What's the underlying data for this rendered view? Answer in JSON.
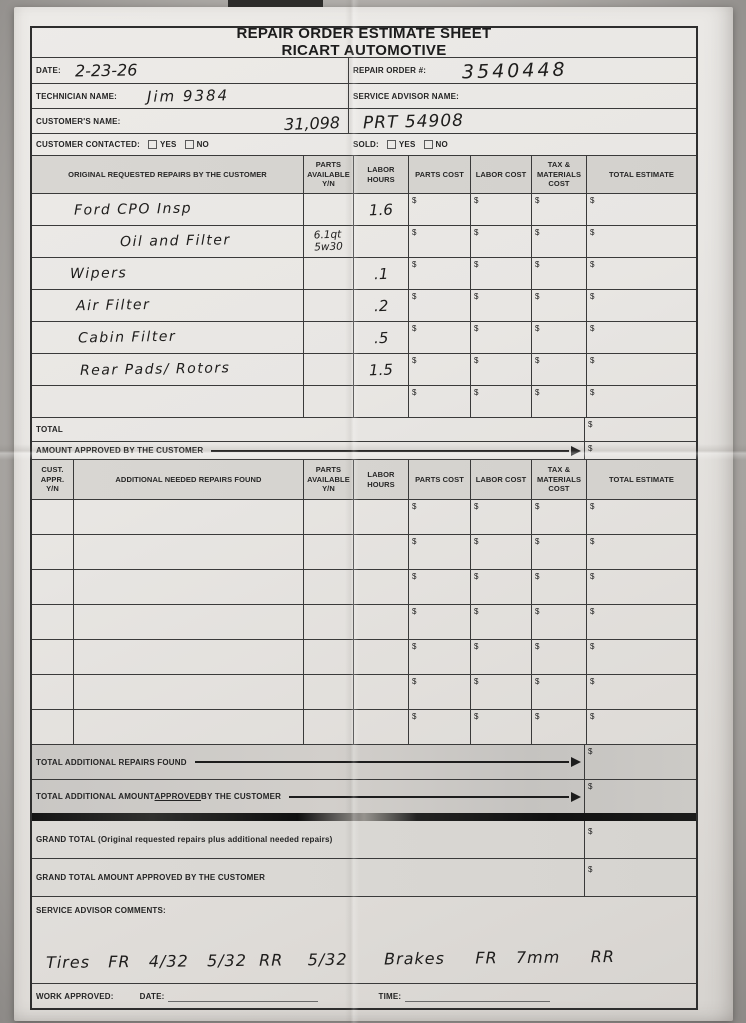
{
  "currency_symbol": "$",
  "header": {
    "title_line1": "REPAIR ORDER ESTIMATE SHEET",
    "title_line2": "RICART AUTOMOTIVE",
    "date_label": "DATE:",
    "date_value": "2-23-26",
    "repair_order_label": "REPAIR ORDER #:",
    "repair_order_value": "3540448",
    "technician_label": "TECHNICIAN NAME:",
    "technician_value": "Jim 9384",
    "service_advisor_label": "SERVICE ADVISOR NAME:",
    "customer_label": "CUSTOMER'S NAME:",
    "customer_value": "31,098",
    "customer_value_right": "PRT 54908",
    "customer_contacted_label": "CUSTOMER CONTACTED:",
    "sold_label": "SOLD:",
    "yes_label": "YES",
    "no_label": "NO"
  },
  "original_table": {
    "headers": [
      "ORIGINAL REQUESTED REPAIRS BY THE CUSTOMER",
      "PARTS\nAVAILABLE\nY/N",
      "LABOR\nHOURS",
      "PARTS COST",
      "LABOR COST",
      "TAX &\nMATERIALS\nCOST",
      "TOTAL ESTIMATE"
    ],
    "rows": [
      {
        "description": "Ford CPO Insp",
        "parts_available": "",
        "labor_hours": "1.6"
      },
      {
        "description": "Oil and Filter",
        "parts_available": "6.1qt\n5w30",
        "labor_hours": ""
      },
      {
        "description": "Wipers",
        "parts_available": "",
        "labor_hours": ".1"
      },
      {
        "description": "Air Filter",
        "parts_available": "",
        "labor_hours": ".2"
      },
      {
        "description": "Cabin Filter",
        "parts_available": "",
        "labor_hours": ".5"
      },
      {
        "description": "Rear Pads/ Rotors",
        "parts_available": "",
        "labor_hours": "1.5"
      },
      {
        "description": "",
        "parts_available": "",
        "labor_hours": ""
      }
    ],
    "total_label": "TOTAL",
    "amount_approved_label": "AMOUNT APPROVED BY THE CUSTOMER"
  },
  "additional_table": {
    "headers": [
      "CUST.\nAPPR.\nY/N",
      "ADDITIONAL NEEDED REPAIRS FOUND",
      "PARTS\nAVAILABLE\nY/N",
      "LABOR\nHOURS",
      "PARTS COST",
      "LABOR COST",
      "TAX &\nMATERIALS\nCOST",
      "TOTAL ESTIMATE"
    ],
    "empty_row_count": 7,
    "total_additional_label": "TOTAL ADDITIONAL REPAIRS FOUND",
    "total_additional_approved_prefix": "TOTAL ADDITIONAL AMOUNT ",
    "total_additional_approved_underlined": "APPROVED",
    "total_additional_approved_suffix": " BY THE CUSTOMER"
  },
  "summary": {
    "grand_total_label": "GRAND TOTAL (Original requested repairs plus additional needed repairs)",
    "grand_total_approved_label": "GRAND TOTAL AMOUNT APPROVED BY THE CUSTOMER",
    "comments_label": "SERVICE ADVISOR COMMENTS:",
    "comments_note": "Tires   FR   4/32   5/32  RR    5/32      Brakes     FR   7mm     RR"
  },
  "footer": {
    "work_approved_label": "WORK APPROVED:",
    "date_label": "DATE:",
    "time_label": "TIME:"
  }
}
